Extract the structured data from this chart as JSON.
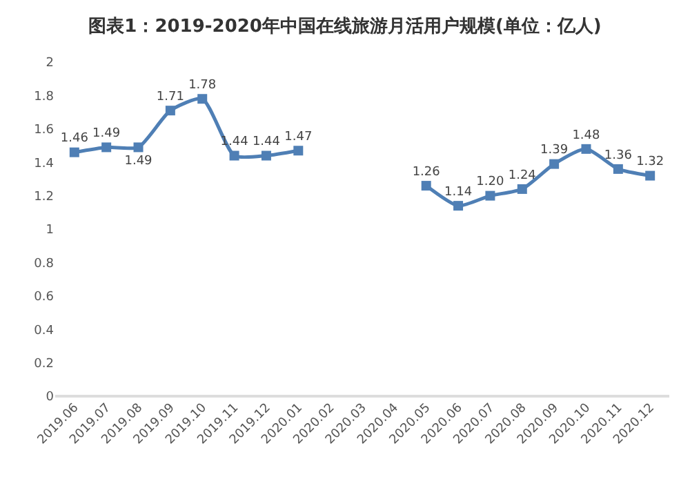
{
  "chart_data": {
    "type": "line",
    "title": "图表1：2019-2020年中国在线旅游月活用户规模(单位：亿人)",
    "categories": [
      "2019.06",
      "2019.07",
      "2019.08",
      "2019.09",
      "2019.10",
      "2019.11",
      "2019.12",
      "2020.01",
      "2020.02",
      "2020.03",
      "2020.04",
      "2020.05",
      "2020.06",
      "2020.07",
      "2020.08",
      "2020.09",
      "2020.10",
      "2020.11",
      "2020.12"
    ],
    "series": [
      {
        "color": "#4f7fb5",
        "values": [
          1.46,
          1.49,
          1.49,
          1.71,
          1.78,
          1.44,
          1.44,
          1.47,
          null,
          null,
          null,
          1.26,
          1.14,
          1.2,
          1.24,
          1.39,
          1.48,
          1.36,
          1.32
        ]
      }
    ],
    "value_labels": [
      "1.46",
      "1.49",
      "1.49",
      "1.71",
      "1.78",
      "1.44",
      "1.44",
      "1.47",
      null,
      null,
      null,
      "1.26",
      "1.14",
      "1.20",
      "1.24",
      "1.39",
      "1.48",
      "1.36",
      "1.32"
    ],
    "ylim": [
      0,
      2
    ],
    "yticks": [
      0,
      {
        "value": 0.2,
        "label": "0.2"
      },
      {
        "value": 0.4,
        "label": "0.4"
      },
      {
        "value": 0.6,
        "label": "0.6"
      },
      {
        "value": 0.8,
        "label": "0.8"
      },
      1,
      {
        "value": 1.2,
        "label": "1.2"
      },
      {
        "value": 1.4,
        "label": "1.4"
      },
      {
        "value": 1.6,
        "label": "1.6"
      },
      {
        "value": 1.8,
        "label": "1.8"
      },
      2
    ],
    "marker": "square",
    "legend": false
  }
}
